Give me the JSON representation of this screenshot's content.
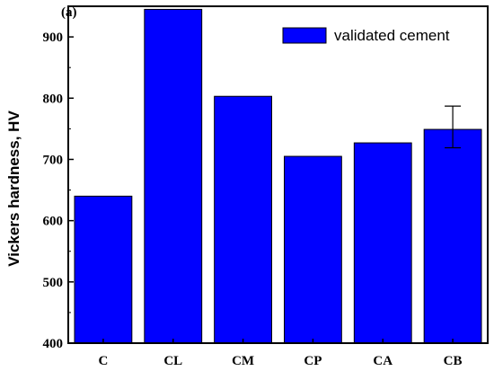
{
  "chart_data": {
    "type": "bar",
    "panel_label": "(a)",
    "categories": [
      "C",
      "CL",
      "CM",
      "CP",
      "CA",
      "CB"
    ],
    "series": [
      {
        "name": "validated cement",
        "values": [
          640,
          945,
          803,
          705,
          727,
          749
        ],
        "color": "#0000ff"
      }
    ],
    "error_bars": [
      null,
      null,
      null,
      null,
      null,
      {
        "low": 719,
        "high": 787
      }
    ],
    "title": "",
    "xlabel": "",
    "ylabel": "Vickers hardness, HV",
    "ylim": [
      400,
      950
    ],
    "yticks": [
      400,
      500,
      600,
      700,
      800,
      900
    ],
    "grid": false,
    "legend_position": "top-right"
  }
}
